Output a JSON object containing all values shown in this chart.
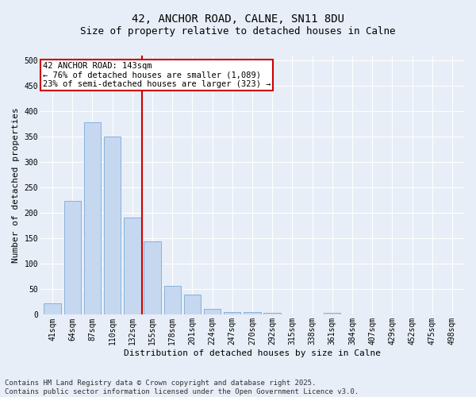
{
  "title1": "42, ANCHOR ROAD, CALNE, SN11 8DU",
  "title2": "Size of property relative to detached houses in Calne",
  "xlabel": "Distribution of detached houses by size in Calne",
  "ylabel": "Number of detached properties",
  "categories": [
    "41sqm",
    "64sqm",
    "87sqm",
    "110sqm",
    "132sqm",
    "155sqm",
    "178sqm",
    "201sqm",
    "224sqm",
    "247sqm",
    "270sqm",
    "292sqm",
    "315sqm",
    "338sqm",
    "361sqm",
    "384sqm",
    "407sqm",
    "429sqm",
    "452sqm",
    "475sqm",
    "498sqm"
  ],
  "values": [
    22,
    224,
    378,
    350,
    192,
    145,
    57,
    40,
    11,
    5,
    6,
    3,
    0,
    0,
    3,
    0,
    0,
    0,
    1,
    0,
    0
  ],
  "bar_color": "#c5d8f0",
  "bar_edge_color": "#7aaad4",
  "vline_x": 4.5,
  "vline_color": "#cc0000",
  "annotation_text": "42 ANCHOR ROAD: 143sqm\n← 76% of detached houses are smaller (1,089)\n23% of semi-detached houses are larger (323) →",
  "annotation_box_facecolor": "#ffffff",
  "annotation_box_edgecolor": "#cc0000",
  "ylim": [
    0,
    510
  ],
  "yticks": [
    0,
    50,
    100,
    150,
    200,
    250,
    300,
    350,
    400,
    450,
    500
  ],
  "bg_color": "#e8eef7",
  "plot_bg_color": "#e8eef7",
  "footer_text": "Contains HM Land Registry data © Crown copyright and database right 2025.\nContains public sector information licensed under the Open Government Licence v3.0.",
  "title_fontsize": 10,
  "subtitle_fontsize": 9,
  "axis_label_fontsize": 8,
  "tick_fontsize": 7,
  "annotation_fontsize": 7.5,
  "footer_fontsize": 6.5,
  "grid_color": "#ffffff",
  "grid_linewidth": 0.8
}
